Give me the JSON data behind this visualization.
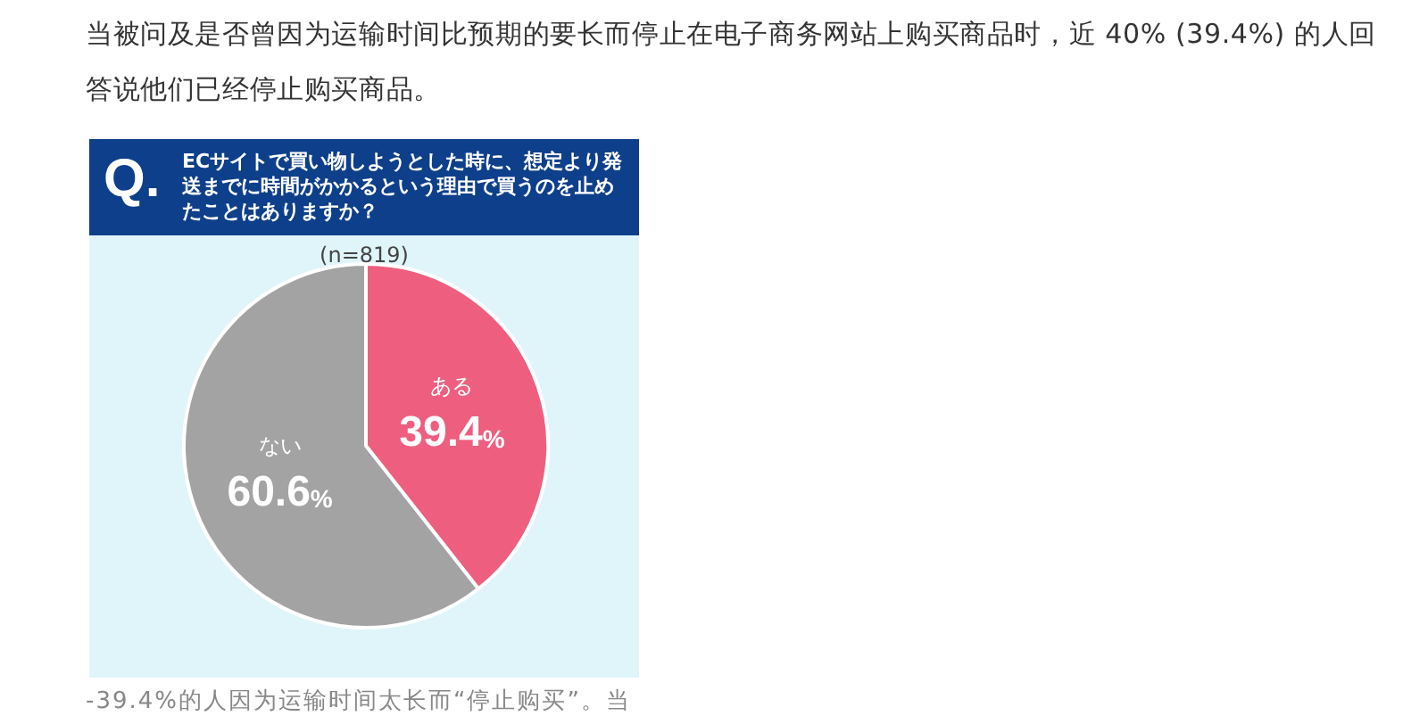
{
  "chart_data": {
    "type": "pie",
    "title": "ECサイトで買い物しようとした時に、想定より発送までに時間がかかるという理由で買うのを止めたことはありますか？",
    "subtitle": "(n=819)",
    "annotations": [
      "当被问及是否曾因为运输时间比预期的要长而停止在电子商务网站上购买商品时，近 40% (39.4%) 的人回答说他们已经停止购买商品。",
      "Q.",
      "-39.4%的人因为运输时间太长而“停止购买”。当"
    ],
    "categories": [
      "ある",
      "ない"
    ],
    "values": [
      39.4,
      60.6
    ],
    "colors": [
      "#ee5f7f",
      "#a3a3a3"
    ],
    "value_labels": [
      "39.4%",
      "60.6%"
    ],
    "legend": false
  }
}
